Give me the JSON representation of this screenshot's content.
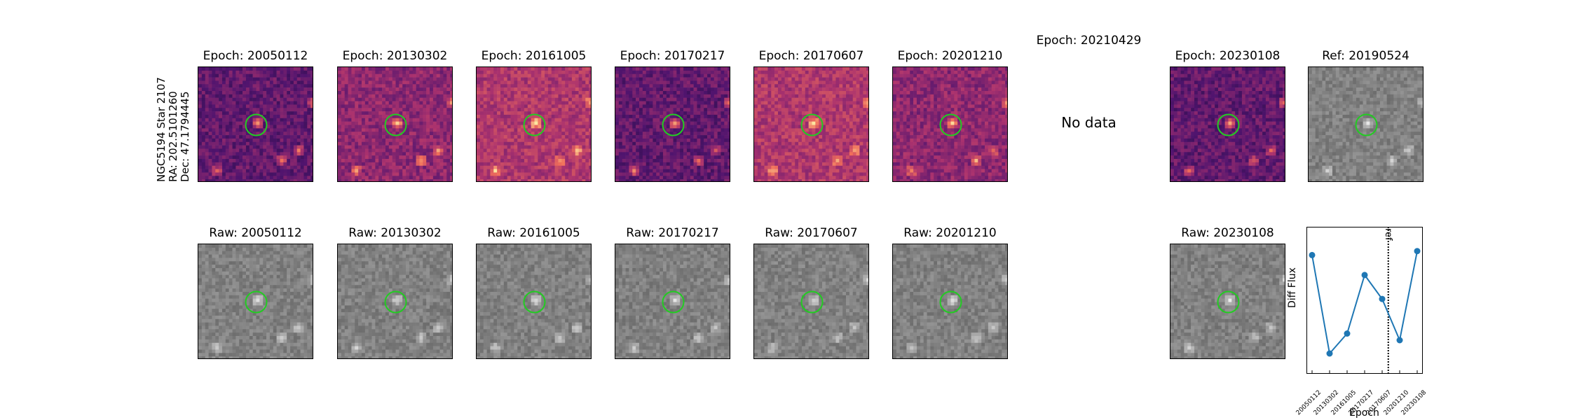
{
  "star_label": {
    "line1": "NGC5194 Star 2107",
    "line2": "RA: 202.5101260",
    "line3": "Dec: 47.1794445"
  },
  "diff_row": [
    {
      "title": "Epoch: 20050112",
      "has_data": true,
      "palette": "magma_dark"
    },
    {
      "title": "Epoch: 20130302",
      "has_data": true,
      "palette": "magma_mid"
    },
    {
      "title": "Epoch: 20161005",
      "has_data": true,
      "palette": "magma_light"
    },
    {
      "title": "Epoch: 20170217",
      "has_data": true,
      "palette": "magma_dark"
    },
    {
      "title": "Epoch: 20170607",
      "has_data": true,
      "palette": "magma_light"
    },
    {
      "title": "Epoch: 20201210",
      "has_data": true,
      "palette": "magma_mid"
    },
    {
      "title": "Epoch: 20210429",
      "has_data": false,
      "nodata_text": "No data"
    },
    {
      "title": "Epoch: 20230108",
      "has_data": true,
      "palette": "magma_dark"
    },
    {
      "title": "Ref: 20190524",
      "has_data": true,
      "palette": "gray"
    }
  ],
  "raw_row": [
    {
      "title": "Raw: 20050112"
    },
    {
      "title": "Raw: 20130302"
    },
    {
      "title": "Raw: 20161005"
    },
    {
      "title": "Raw: 20170217"
    },
    {
      "title": "Raw: 20170607"
    },
    {
      "title": "Raw: 20201210"
    },
    {
      "title": "Raw: 20230108"
    }
  ],
  "colors": {
    "circle": "#22cc22",
    "line": "#1f77b4"
  },
  "chart_data": {
    "type": "line",
    "categories": [
      "20050112",
      "20130302",
      "20161005",
      "20170217",
      "20170607",
      "20201210",
      "20230108"
    ],
    "series": [
      {
        "values": [
          0.84,
          0.1,
          0.25,
          0.69,
          0.51,
          0.2,
          0.87
        ]
      }
    ],
    "ylim": [
      0.0,
      1.0
    ],
    "xlabel": "Epoch",
    "ylabel": "Diff Flux",
    "ref_label": "ref",
    "ref_position_between": [
      "20170607",
      "20201210"
    ],
    "grid": false
  }
}
